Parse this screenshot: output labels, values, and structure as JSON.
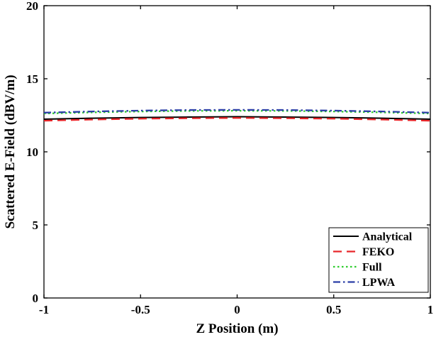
{
  "chart_data": {
    "type": "line",
    "title": "",
    "xlabel": "Z Position (m)",
    "ylabel": "Scattered E-Field (dBV/m)",
    "xlim": [
      -1,
      1
    ],
    "ylim": [
      0,
      20
    ],
    "xticks": [
      -1,
      -0.5,
      0,
      0.5,
      1
    ],
    "xtick_labels": [
      "-1",
      "-0.5",
      "0",
      "0.5",
      "1"
    ],
    "yticks": [
      0,
      5,
      10,
      15,
      20
    ],
    "ytick_labels": [
      "0",
      "5",
      "10",
      "15",
      "20"
    ],
    "grid": false,
    "legend_position": "bottom-right",
    "x": [
      -1,
      -0.75,
      -0.5,
      -0.25,
      0,
      0.25,
      0.5,
      0.75,
      1
    ],
    "series": [
      {
        "name": "Analytical",
        "color": "#000000",
        "dash": "solid",
        "values": [
          12.23,
          12.3,
          12.35,
          12.38,
          12.4,
          12.38,
          12.35,
          12.3,
          12.23
        ]
      },
      {
        "name": "FEKO",
        "color": "#e8262a",
        "dash": "dashed",
        "values": [
          12.13,
          12.21,
          12.27,
          12.3,
          12.32,
          12.3,
          12.27,
          12.21,
          12.13
        ]
      },
      {
        "name": "Full",
        "color": "#2ecc2e",
        "dash": "dotted",
        "values": [
          12.62,
          12.7,
          12.76,
          12.8,
          12.81,
          12.8,
          12.76,
          12.7,
          12.62
        ]
      },
      {
        "name": "LPWA",
        "color": "#2b3fa6",
        "dash": "dashdot",
        "values": [
          12.68,
          12.76,
          12.82,
          12.86,
          12.87,
          12.86,
          12.82,
          12.76,
          12.68
        ]
      }
    ]
  }
}
